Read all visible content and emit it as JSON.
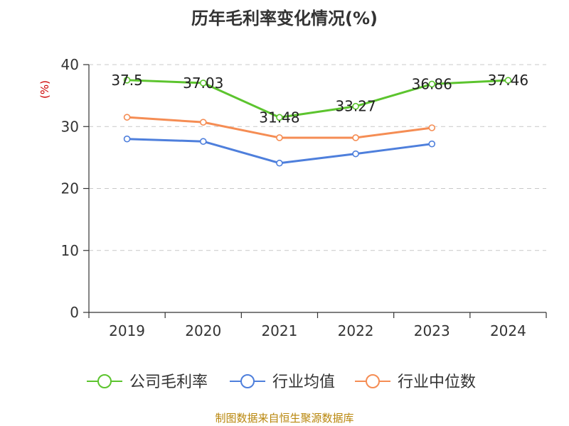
{
  "title": "历年毛利率变化情况(%)",
  "source": "制图数据来自恒生聚源数据库",
  "chart_data": {
    "type": "line",
    "title": "历年毛利率变化情况(%)",
    "xlabel": "",
    "ylabel": "(%)",
    "categories": [
      "2019",
      "2020",
      "2021",
      "2022",
      "2023",
      "2024"
    ],
    "ylim": [
      0,
      40
    ],
    "yticks": [
      0,
      10,
      20,
      30,
      40
    ],
    "grid": true,
    "legend_position": "bottom",
    "series": [
      {
        "name": "公司毛利率",
        "color": "#5cc42e",
        "values": [
          37.5,
          37.03,
          31.48,
          33.27,
          36.86,
          37.46
        ],
        "labels": [
          "37.5",
          "37.03",
          "31.48",
          "33.27",
          "36.86",
          "37.46"
        ]
      },
      {
        "name": "行业均值",
        "color": "#4e7fdc",
        "values": [
          28.0,
          27.6,
          24.1,
          25.6,
          27.2,
          null
        ]
      },
      {
        "name": "行业中位数",
        "color": "#f58d54",
        "values": [
          31.5,
          30.7,
          28.2,
          28.2,
          29.8,
          null
        ]
      }
    ]
  }
}
